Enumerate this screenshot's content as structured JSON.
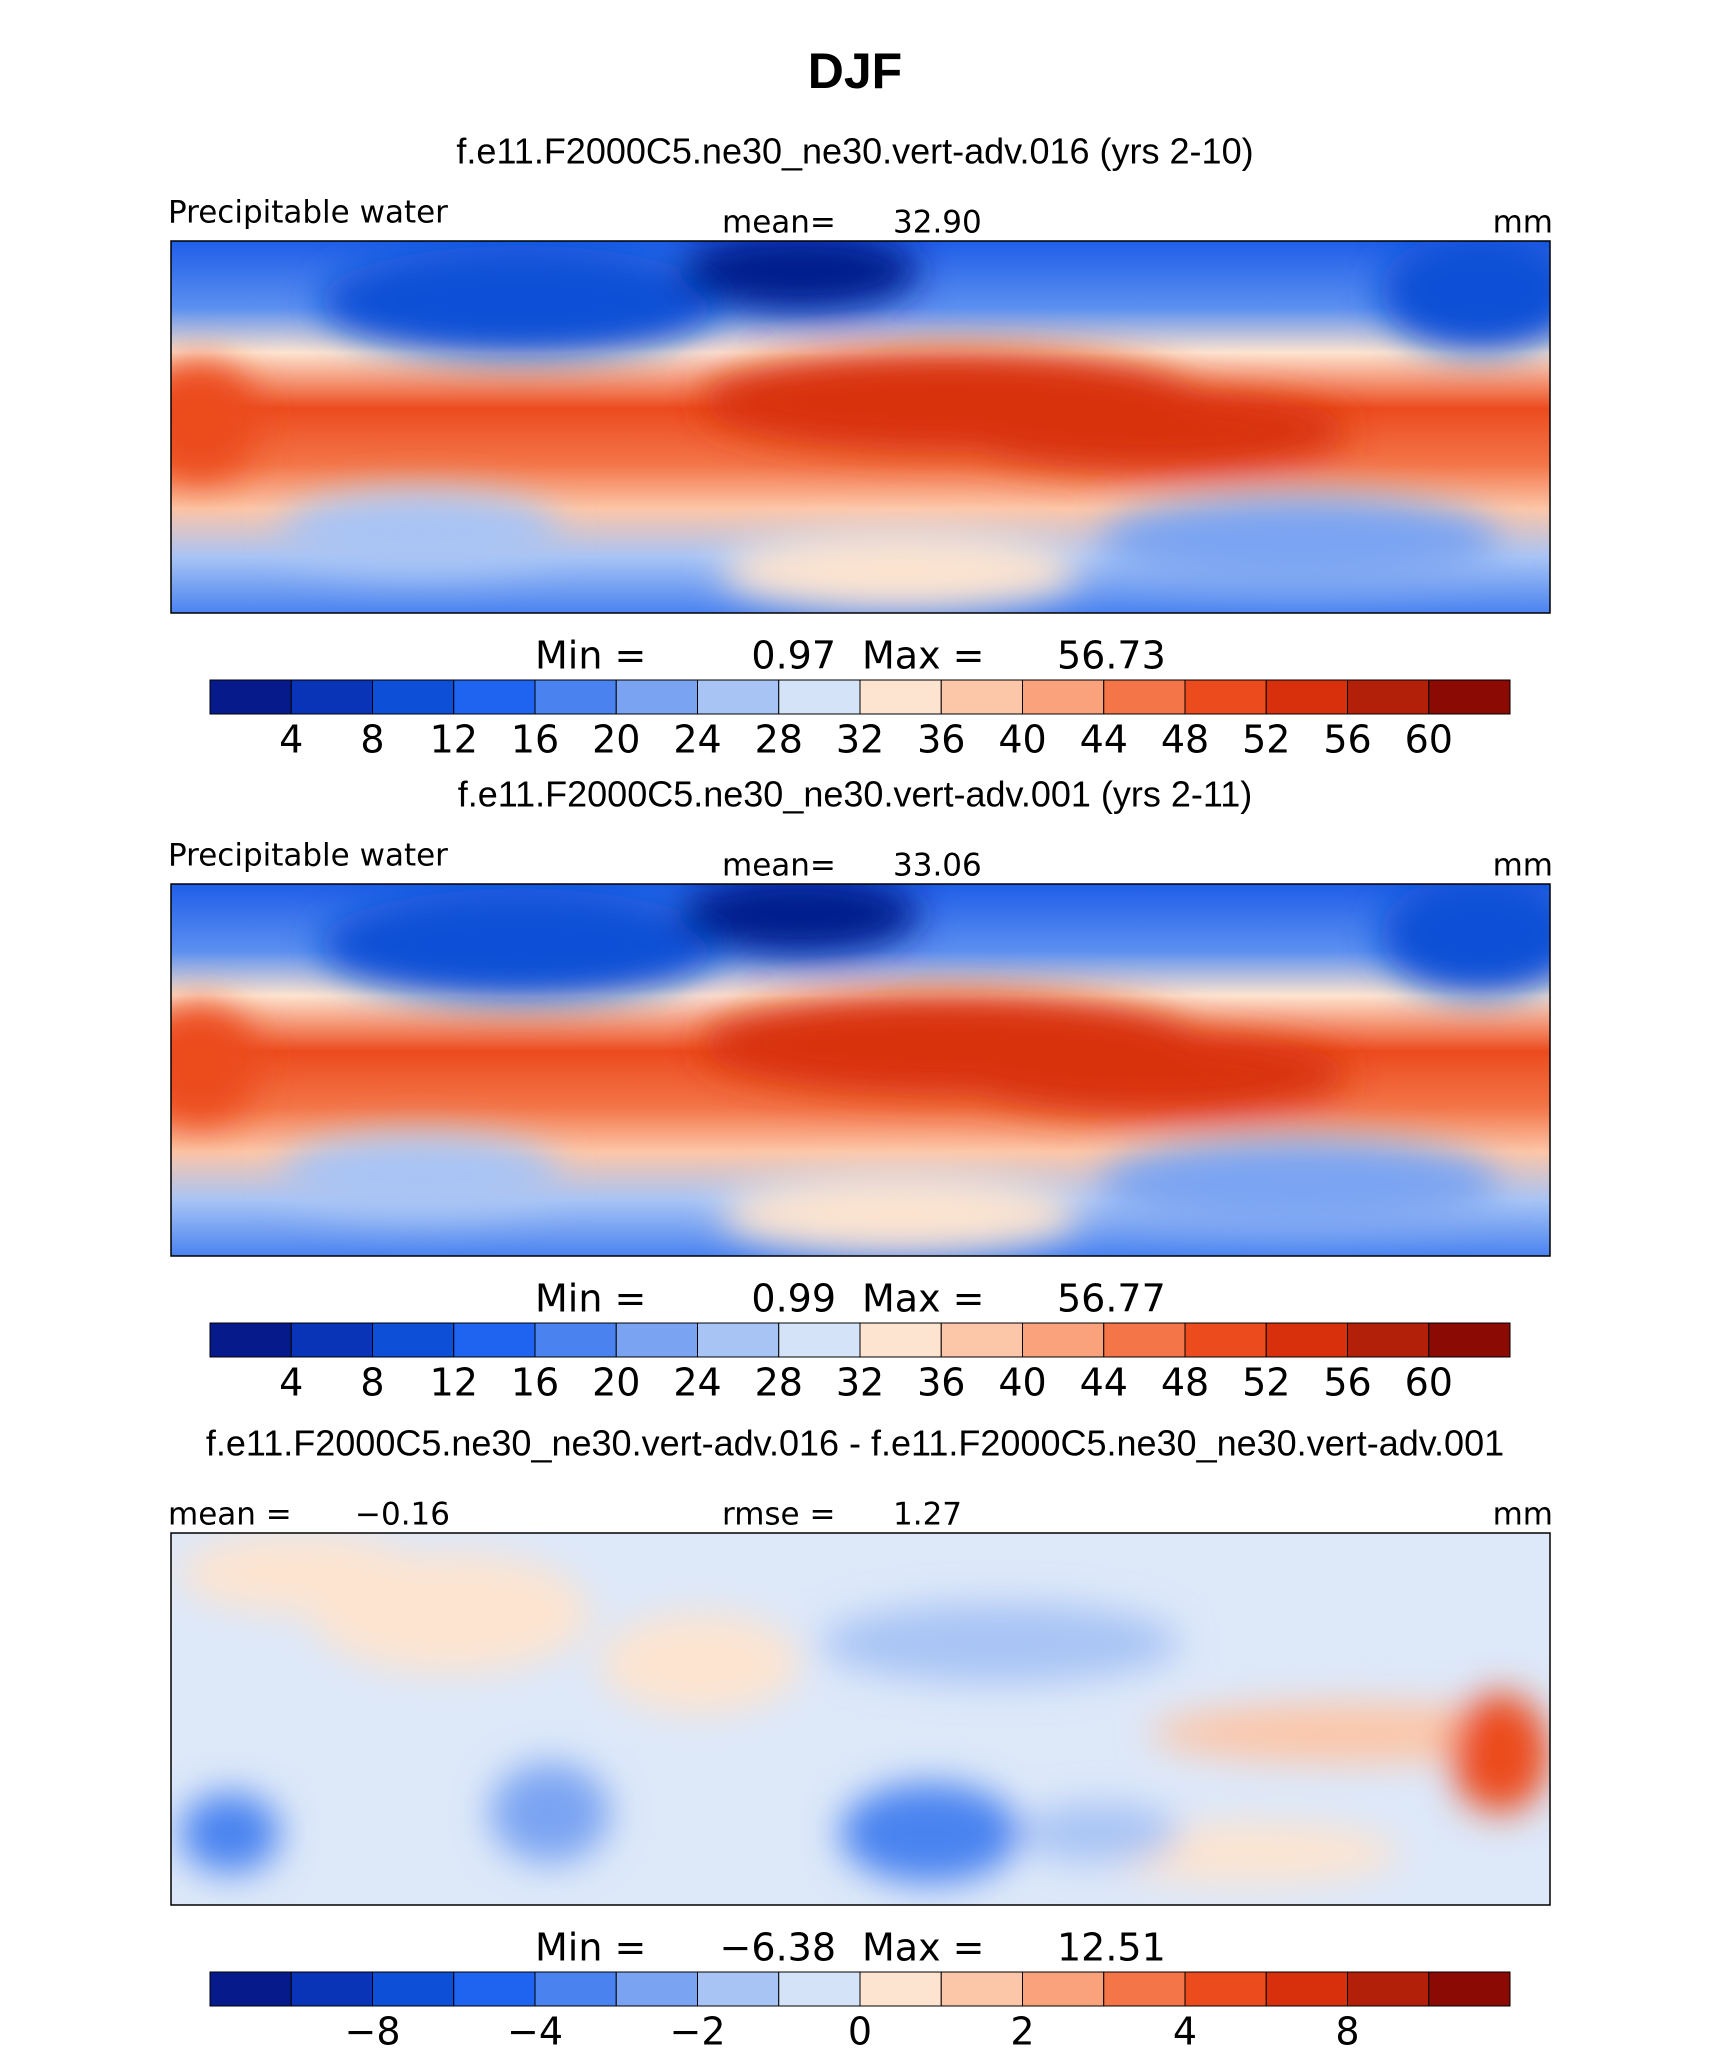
{
  "title": "DJF",
  "panels": [
    {
      "title": "f.e11.F2000C5.ne30_ne30.vert-adv.016 (yrs 2-10)",
      "left_label": "Precipitable water",
      "stat_label": "mean=",
      "stat_value": "32.90",
      "units": "mm",
      "min_label": "Min =",
      "min": "0.97",
      "max_label": "Max =",
      "max": "56.73",
      "field": "abs",
      "colorbar_labels": [
        "4",
        "8",
        "12",
        "16",
        "20",
        "24",
        "28",
        "32",
        "36",
        "40",
        "44",
        "48",
        "52",
        "56",
        "60"
      ]
    },
    {
      "title": "f.e11.F2000C5.ne30_ne30.vert-adv.001 (yrs 2-11)",
      "left_label": "Precipitable water",
      "stat_label": "mean=",
      "stat_value": "33.06",
      "units": "mm",
      "min_label": "Min =",
      "min": "0.99",
      "max_label": "Max =",
      "max": "56.77",
      "field": "abs",
      "colorbar_labels": [
        "4",
        "8",
        "12",
        "16",
        "20",
        "24",
        "28",
        "32",
        "36",
        "40",
        "44",
        "48",
        "52",
        "56",
        "60"
      ]
    },
    {
      "title": "f.e11.F2000C5.ne30_ne30.vert-adv.016 - f.e11.F2000C5.ne30_ne30.vert-adv.001",
      "left_label": "mean =",
      "left_value": "−0.16",
      "stat_label": "rmse =",
      "stat_value": "1.27",
      "units": "mm",
      "min_label": "Min =",
      "min": "−6.38",
      "max_label": "Max =",
      "max": "12.51",
      "field": "diff",
      "colorbar_labels": [
        null,
        "−8",
        null,
        "−4",
        null,
        "−2",
        null,
        "0",
        null,
        "2",
        null,
        "4",
        null,
        "8",
        null
      ]
    }
  ],
  "colorbar_colors": [
    "#061a8c",
    "#0a34b8",
    "#0d4fd6",
    "#1f64f0",
    "#4a83f0",
    "#7aa4f2",
    "#a8c4f5",
    "#d4e3f8",
    "#fde4d0",
    "#fcc6a8",
    "#f9a27b",
    "#f37548",
    "#ec4b1e",
    "#d8300c",
    "#b3200a",
    "#8c0a04"
  ]
}
